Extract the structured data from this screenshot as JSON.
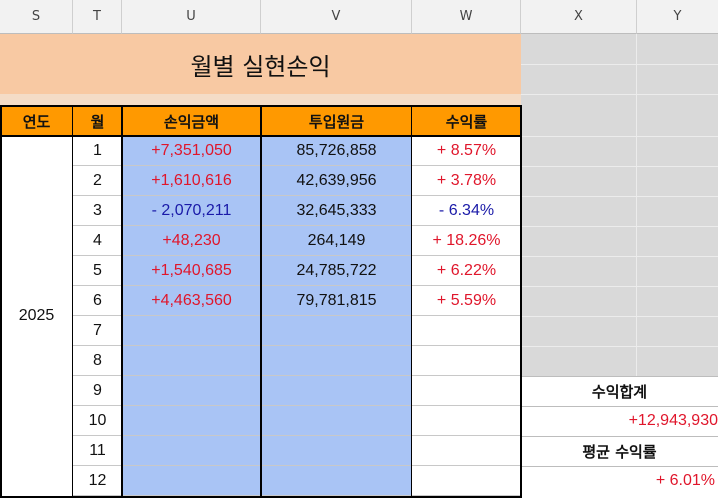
{
  "column_headers": [
    "S",
    "T",
    "U",
    "V",
    "W",
    "X",
    "Y"
  ],
  "title": "월별 실현손익",
  "table_headers": {
    "year": "연도",
    "month": "월",
    "profit": "손익금액",
    "investment": "투입원금",
    "return_rate": "수익률"
  },
  "year": "2025",
  "rows": [
    {
      "month": "1",
      "profit": "+7,351,050",
      "investment": "85,726,858",
      "rate": "+ 8.57%"
    },
    {
      "month": "2",
      "profit": "+1,610,616",
      "investment": "42,639,956",
      "rate": "+ 3.78%"
    },
    {
      "month": "3",
      "profit": "- 2,070,211",
      "investment": "32,645,333",
      "rate": "- 6.34%"
    },
    {
      "month": "4",
      "profit": "+48,230",
      "investment": "264,149",
      "rate": "+ 18.26%"
    },
    {
      "month": "5",
      "profit": "+1,540,685",
      "investment": "24,785,722",
      "rate": "+ 6.22%"
    },
    {
      "month": "6",
      "profit": "+4,463,560",
      "investment": "79,781,815",
      "rate": "+ 5.59%"
    },
    {
      "month": "7",
      "profit": "",
      "investment": "",
      "rate": ""
    },
    {
      "month": "8",
      "profit": "",
      "investment": "",
      "rate": ""
    },
    {
      "month": "9",
      "profit": "",
      "investment": "",
      "rate": ""
    },
    {
      "month": "10",
      "profit": "",
      "investment": "",
      "rate": ""
    },
    {
      "month": "11",
      "profit": "",
      "investment": "",
      "rate": ""
    },
    {
      "month": "12",
      "profit": "",
      "investment": "",
      "rate": ""
    }
  ],
  "summary": {
    "total_label": "수익합계",
    "total_value": "+12,943,930",
    "avg_label": "평균 수익률",
    "avg_value": "+ 6.01%"
  },
  "colors": {
    "title_bg": "#f8c9a3",
    "header_bg": "#ff9900",
    "profit_col_bg": "#a9c4f5",
    "gray_panel": "#d9d9d9",
    "positive": "#e0162b",
    "negative": "#1a1aa8"
  }
}
